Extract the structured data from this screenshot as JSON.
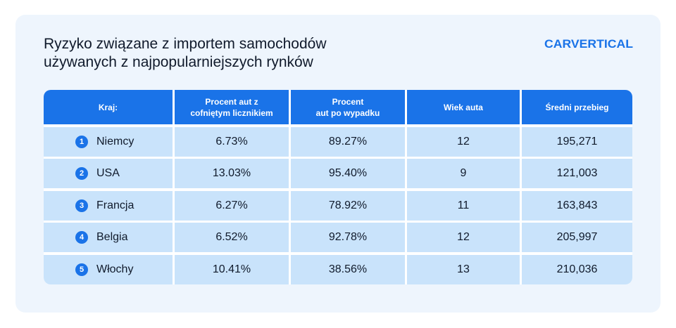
{
  "title": {
    "line1": "Ryzyko związane z importem samochodów",
    "line2": "używanych z najpopularniejszych rynków"
  },
  "logo": {
    "text": "carVertical",
    "color": "#1a73e8"
  },
  "colors": {
    "header": "#1a73e8",
    "row": "#c9e3fb",
    "card": "#eef5fd"
  },
  "chart_data": {
    "type": "table",
    "columns": [
      {
        "l1": "Kraj:",
        "l2": ""
      },
      {
        "l1": "Procent aut z",
        "l2": "cofniętym licznikiem"
      },
      {
        "l1": "Procent",
        "l2": "aut po wypadku"
      },
      {
        "l1": "Wiek auta",
        "l2": ""
      },
      {
        "l1": "Średni przebieg",
        "l2": ""
      }
    ],
    "rows": [
      {
        "rank": "1",
        "country": "Niemcy",
        "rollback": "6.73%",
        "accident": "89.27%",
        "age": "12",
        "mileage": "195,271"
      },
      {
        "rank": "2",
        "country": "USA",
        "rollback": "13.03%",
        "accident": "95.40%",
        "age": "9",
        "mileage": "121,003"
      },
      {
        "rank": "3",
        "country": "Francja",
        "rollback": "6.27%",
        "accident": "78.92%",
        "age": "11",
        "mileage": "163,843"
      },
      {
        "rank": "4",
        "country": "Belgia",
        "rollback": "6.52%",
        "accident": "92.78%",
        "age": "12",
        "mileage": "205,997"
      },
      {
        "rank": "5",
        "country": "Włochy",
        "rollback": "10.41%",
        "accident": "38.56%",
        "age": "13",
        "mileage": "210,036"
      }
    ]
  }
}
